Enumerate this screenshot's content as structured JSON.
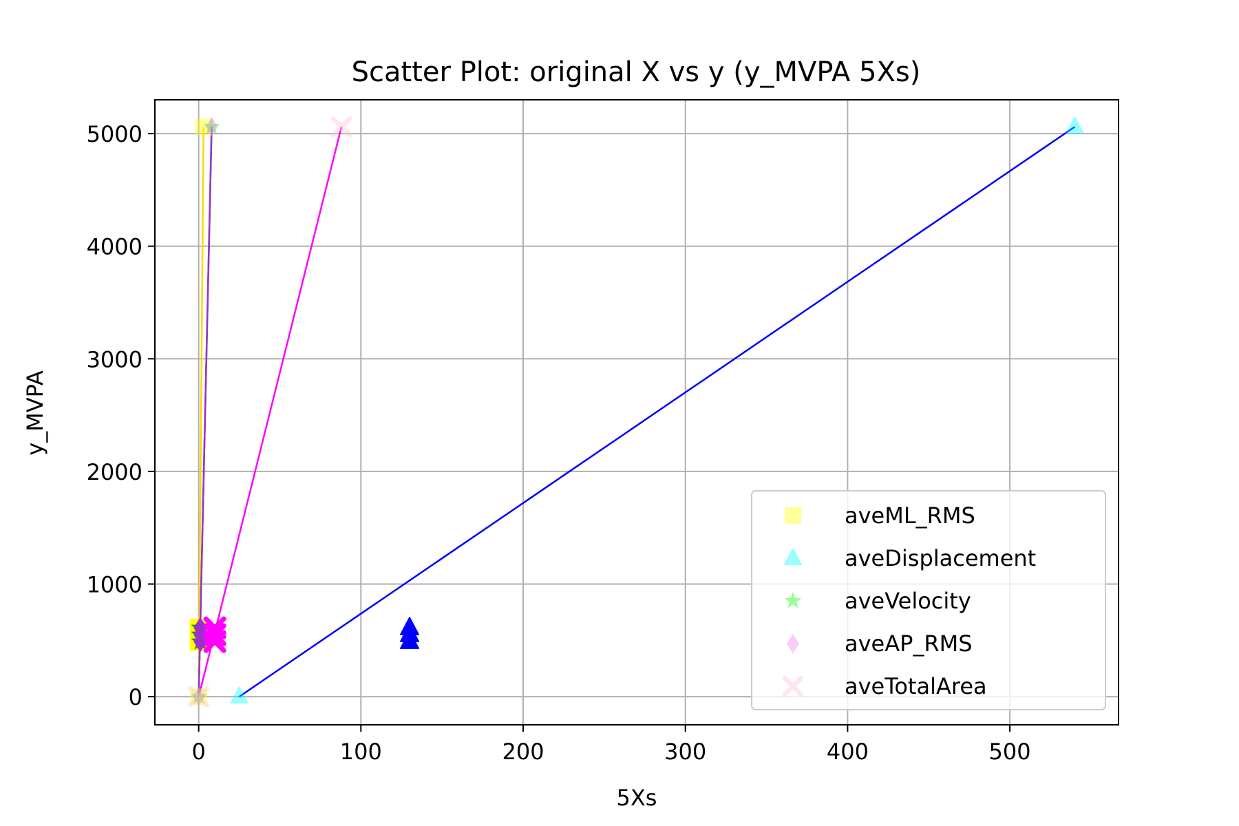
{
  "chart_data": {
    "type": "scatter",
    "title": "Scatter Plot: original X vs y (y_MVPA 5Xs)",
    "xlabel": "5Xs",
    "ylabel": "y_MVPA",
    "xlim": [
      -27,
      567
    ],
    "ylim": [
      -250,
      5300
    ],
    "xticks": [
      0,
      100,
      200,
      300,
      400,
      500
    ],
    "yticks": [
      0,
      1000,
      2000,
      3000,
      4000,
      5000
    ],
    "grid": true,
    "legend_position": "lower-right",
    "series": [
      {
        "name": "aveML_RMS",
        "marker": "square",
        "color": "#ffff00",
        "x": [
          0,
          3
        ],
        "y": [
          0,
          5060
        ],
        "line": {
          "x": [
            0,
            3
          ],
          "y": [
            0,
            5060
          ],
          "color": "#ffd700"
        },
        "mean": {
          "x": 0,
          "y": 550
        }
      },
      {
        "name": "aveDisplacement",
        "marker": "triangle",
        "color": "#00ffff",
        "x": [
          25,
          540
        ],
        "y": [
          0,
          5060
        ],
        "line": {
          "x": [
            25,
            540
          ],
          "y": [
            0,
            5060
          ],
          "color": "#0000ff"
        },
        "mean": {
          "x": 130,
          "y": 550,
          "color": "#0000ff"
        }
      },
      {
        "name": "aveVelocity",
        "marker": "star",
        "color": "#00ff00",
        "x": [
          0,
          8
        ],
        "y": [
          0,
          5060
        ],
        "line": {
          "x": [
            0,
            8
          ],
          "y": [
            0,
            5060
          ],
          "color": "#228b22"
        },
        "mean": {
          "x": 1,
          "y": 550,
          "color": "#228b22"
        }
      },
      {
        "name": "aveAP_RMS",
        "marker": "diamond",
        "color": "#ee82ee",
        "x": [
          0,
          8
        ],
        "y": [
          0,
          5060
        ],
        "line": {
          "x": [
            0,
            8
          ],
          "y": [
            0,
            5060
          ],
          "color": "#9932cc"
        },
        "mean": {
          "x": 1,
          "y": 550,
          "color": "#9932cc"
        }
      },
      {
        "name": "aveTotalArea",
        "marker": "x",
        "color": "#ffc0cb",
        "x": [
          0,
          88
        ],
        "y": [
          0,
          5060
        ],
        "line": {
          "x": [
            0,
            88
          ],
          "y": [
            0,
            5060
          ],
          "color": "#ff00ff"
        },
        "mean": {
          "x": 10,
          "y": 550,
          "color": "#ff00ff"
        }
      }
    ]
  }
}
